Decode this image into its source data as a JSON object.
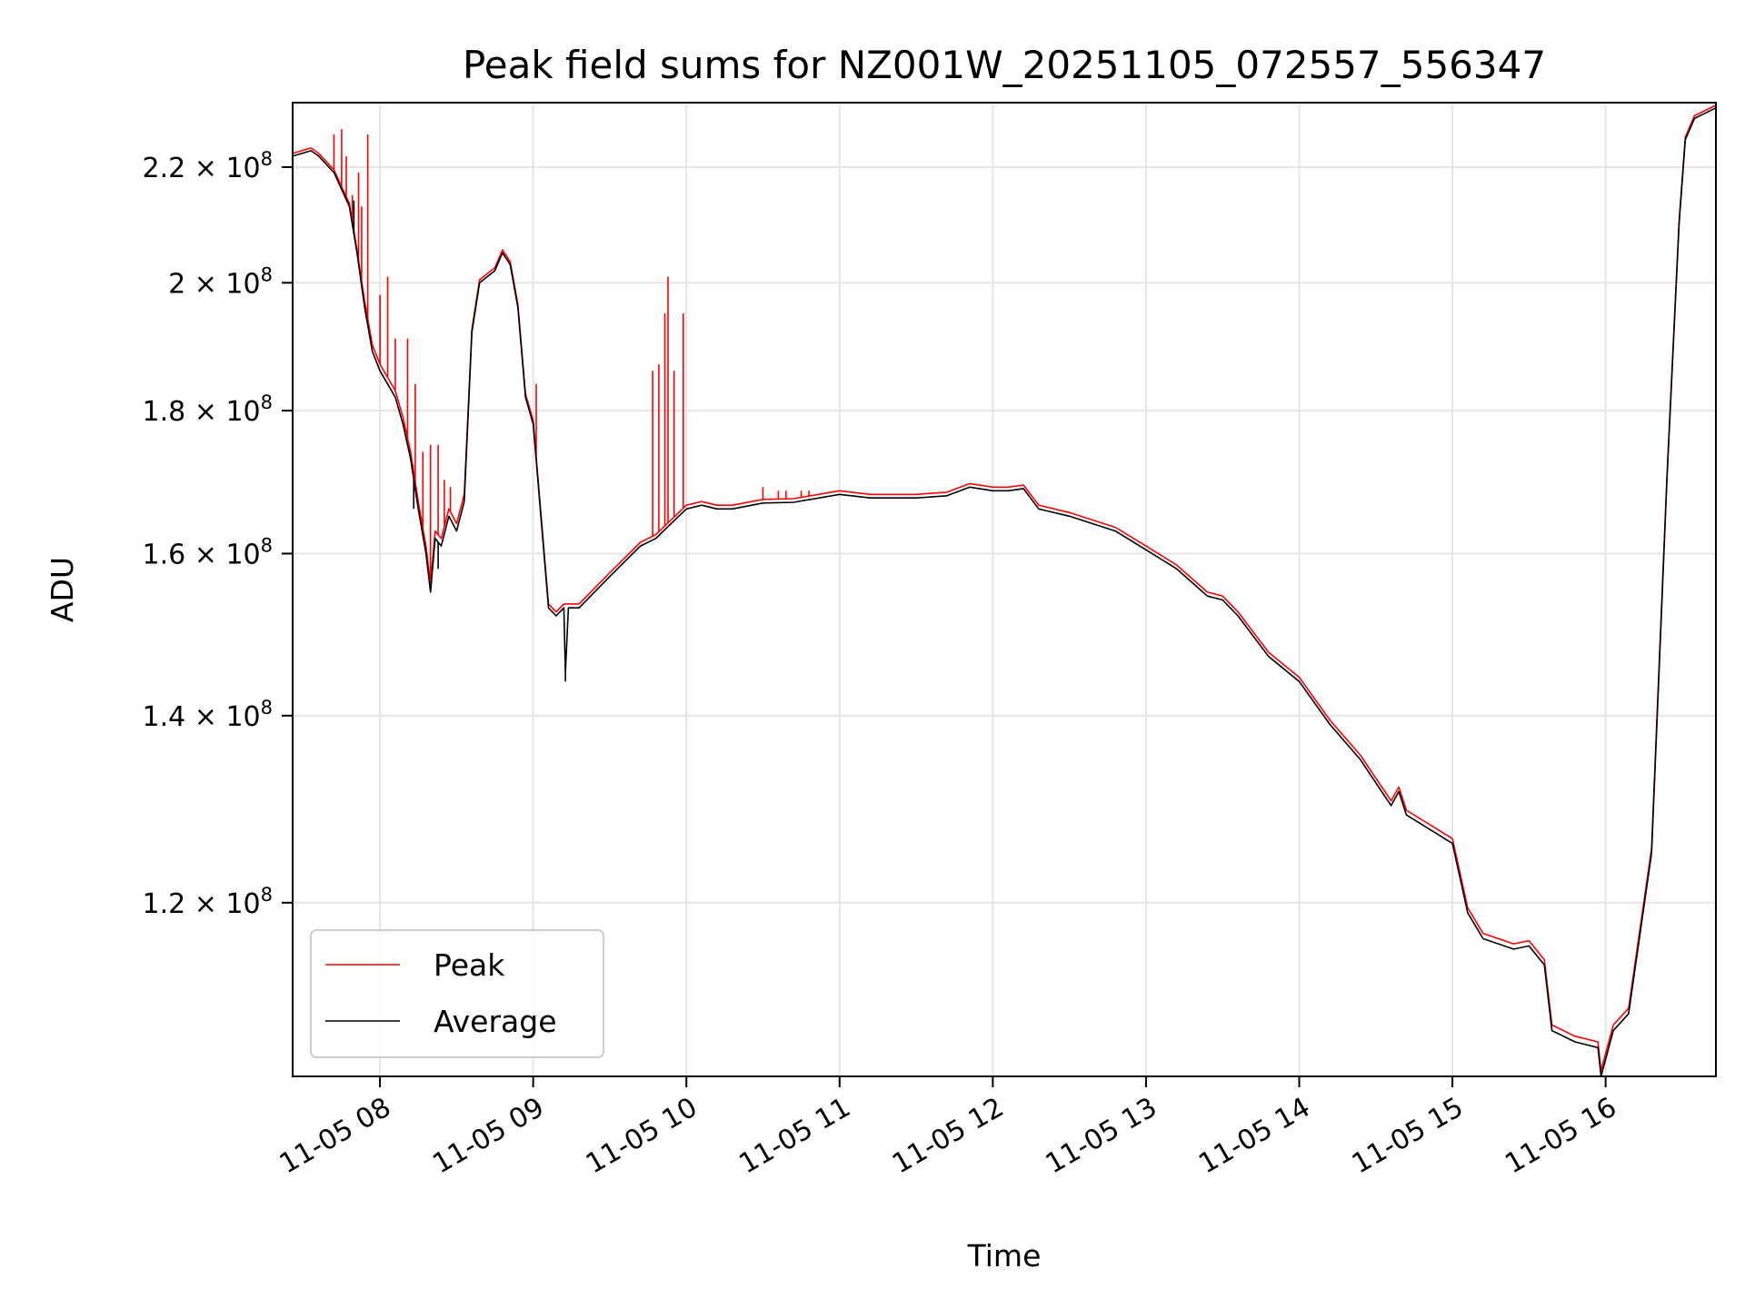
{
  "chart_data": {
    "type": "line",
    "title": "Peak field sums for NZ001W_20251105_072557_556347",
    "xlabel": "Time",
    "ylabel": "ADU",
    "yscale": "log",
    "xlim": [
      7.43,
      16.72
    ],
    "ylim": [
      104000000,
      232000000
    ],
    "x_unit": "hours on 2025-11-05",
    "x_ticks": [
      {
        "value": 8,
        "label": "11-05 08"
      },
      {
        "value": 9,
        "label": "11-05 09"
      },
      {
        "value": 10,
        "label": "11-05 10"
      },
      {
        "value": 11,
        "label": "11-05 11"
      },
      {
        "value": 12,
        "label": "11-05 12"
      },
      {
        "value": 13,
        "label": "11-05 13"
      },
      {
        "value": 14,
        "label": "11-05 14"
      },
      {
        "value": 15,
        "label": "11-05 15"
      },
      {
        "value": 16,
        "label": "11-05 16"
      }
    ],
    "y_ticks": [
      {
        "value": 120000000,
        "mantissa": "1.2"
      },
      {
        "value": 140000000,
        "mantissa": "1.4"
      },
      {
        "value": 160000000,
        "mantissa": "1.6"
      },
      {
        "value": 180000000,
        "mantissa": "1.8"
      },
      {
        "value": 200000000,
        "mantissa": "2"
      },
      {
        "value": 220000000,
        "mantissa": "2.2"
      }
    ],
    "y_tick_multiplier": "× 10",
    "y_tick_exponent": "8",
    "grid": true,
    "legend_position": "lower-left",
    "series": [
      {
        "name": "Average",
        "color": "#000000",
        "points": [
          [
            7.43,
            222000000
          ],
          [
            7.55,
            223000000
          ],
          [
            7.6,
            222000000
          ],
          [
            7.7,
            219000000
          ],
          [
            7.8,
            213000000
          ],
          [
            7.85,
            205000000
          ],
          [
            7.9,
            196000000
          ],
          [
            7.95,
            189000000
          ],
          [
            8.0,
            186000000
          ],
          [
            8.05,
            184000000
          ],
          [
            8.1,
            182000000
          ],
          [
            8.15,
            178000000
          ],
          [
            8.2,
            173000000
          ],
          [
            8.25,
            166000000
          ],
          [
            8.3,
            160000000
          ],
          [
            8.33,
            155000000
          ],
          [
            8.36,
            162000000
          ],
          [
            8.4,
            161000000
          ],
          [
            8.45,
            165000000
          ],
          [
            8.5,
            163000000
          ],
          [
            8.55,
            167000000
          ],
          [
            8.6,
            192000000
          ],
          [
            8.65,
            200000000
          ],
          [
            8.7,
            201000000
          ],
          [
            8.75,
            202000000
          ],
          [
            8.8,
            205000000
          ],
          [
            8.85,
            203000000
          ],
          [
            8.9,
            196000000
          ],
          [
            8.95,
            182000000
          ],
          [
            9.0,
            178000000
          ],
          [
            9.05,
            165000000
          ],
          [
            9.1,
            153000000
          ],
          [
            9.15,
            152000000
          ],
          [
            9.2,
            153000000
          ],
          [
            9.21,
            145000000
          ],
          [
            9.23,
            153000000
          ],
          [
            9.3,
            153000000
          ],
          [
            9.5,
            157000000
          ],
          [
            9.7,
            161000000
          ],
          [
            9.8,
            162000000
          ],
          [
            9.9,
            164000000
          ],
          [
            10.0,
            166000000
          ],
          [
            10.1,
            166500000
          ],
          [
            10.2,
            166000000
          ],
          [
            10.3,
            166000000
          ],
          [
            10.5,
            166800000
          ],
          [
            10.7,
            166900000
          ],
          [
            11.0,
            168000000
          ],
          [
            11.2,
            167500000
          ],
          [
            11.5,
            167500000
          ],
          [
            11.7,
            167800000
          ],
          [
            11.85,
            169000000
          ],
          [
            12.0,
            168500000
          ],
          [
            12.1,
            168500000
          ],
          [
            12.2,
            168800000
          ],
          [
            12.3,
            166000000
          ],
          [
            12.5,
            165000000
          ],
          [
            12.8,
            163000000
          ],
          [
            13.0,
            160500000
          ],
          [
            13.2,
            158000000
          ],
          [
            13.4,
            154500000
          ],
          [
            13.5,
            154000000
          ],
          [
            13.6,
            152000000
          ],
          [
            13.8,
            147000000
          ],
          [
            14.0,
            144000000
          ],
          [
            14.2,
            139000000
          ],
          [
            14.4,
            135000000
          ],
          [
            14.6,
            130000000
          ],
          [
            14.65,
            131500000
          ],
          [
            14.7,
            129000000
          ],
          [
            14.9,
            127000000
          ],
          [
            15.0,
            126000000
          ],
          [
            15.1,
            119000000
          ],
          [
            15.2,
            116500000
          ],
          [
            15.4,
            115500000
          ],
          [
            15.5,
            115800000
          ],
          [
            15.6,
            114000000
          ],
          [
            15.65,
            108000000
          ],
          [
            15.8,
            107000000
          ],
          [
            15.95,
            106500000
          ],
          [
            15.97,
            104000000
          ],
          [
            16.05,
            108000000
          ],
          [
            16.15,
            109500000
          ],
          [
            16.3,
            125000000
          ],
          [
            16.4,
            170000000
          ],
          [
            16.48,
            210000000
          ],
          [
            16.52,
            225000000
          ],
          [
            16.58,
            229000000
          ],
          [
            16.72,
            231000000
          ]
        ],
        "dips": [
          [
            7.83,
            214000000
          ],
          [
            8.22,
            166000000
          ],
          [
            8.38,
            158000000
          ],
          [
            9.21,
            144000000
          ],
          [
            15.97,
            104000000
          ]
        ]
      },
      {
        "name": "Peak",
        "color": "#ff0000",
        "points": [
          [
            7.43,
            222500000
          ],
          [
            7.55,
            223500000
          ],
          [
            7.6,
            222500000
          ],
          [
            7.7,
            219500000
          ],
          [
            7.8,
            213500000
          ],
          [
            7.85,
            205500000
          ],
          [
            7.9,
            197000000
          ],
          [
            7.95,
            190000000
          ],
          [
            8.0,
            187000000
          ],
          [
            8.05,
            185000000
          ],
          [
            8.1,
            183000000
          ],
          [
            8.15,
            179000000
          ],
          [
            8.2,
            174000000
          ],
          [
            8.25,
            167000000
          ],
          [
            8.3,
            161000000
          ],
          [
            8.33,
            156000000
          ],
          [
            8.36,
            163000000
          ],
          [
            8.4,
            162000000
          ],
          [
            8.45,
            166000000
          ],
          [
            8.5,
            164000000
          ],
          [
            8.55,
            168000000
          ],
          [
            8.6,
            192500000
          ],
          [
            8.65,
            200500000
          ],
          [
            8.7,
            201500000
          ],
          [
            8.75,
            202500000
          ],
          [
            8.8,
            205500000
          ],
          [
            8.85,
            203500000
          ],
          [
            8.9,
            196500000
          ],
          [
            8.95,
            182500000
          ],
          [
            9.0,
            178500000
          ],
          [
            9.05,
            165500000
          ],
          [
            9.1,
            153500000
          ],
          [
            9.15,
            152500000
          ],
          [
            9.2,
            153500000
          ],
          [
            9.23,
            153500000
          ],
          [
            9.3,
            153500000
          ],
          [
            9.5,
            157500000
          ],
          [
            9.7,
            161500000
          ],
          [
            9.8,
            162500000
          ],
          [
            9.9,
            164500000
          ],
          [
            10.0,
            166500000
          ],
          [
            10.1,
            167000000
          ],
          [
            10.2,
            166500000
          ],
          [
            10.3,
            166500000
          ],
          [
            10.5,
            167300000
          ],
          [
            10.7,
            167400000
          ],
          [
            11.0,
            168500000
          ],
          [
            11.2,
            168000000
          ],
          [
            11.5,
            168000000
          ],
          [
            11.7,
            168300000
          ],
          [
            11.85,
            169500000
          ],
          [
            12.0,
            169000000
          ],
          [
            12.1,
            169000000
          ],
          [
            12.2,
            169300000
          ],
          [
            12.3,
            166500000
          ],
          [
            12.5,
            165500000
          ],
          [
            12.8,
            163500000
          ],
          [
            13.0,
            161000000
          ],
          [
            13.2,
            158500000
          ],
          [
            13.4,
            155000000
          ],
          [
            13.5,
            154500000
          ],
          [
            13.6,
            152500000
          ],
          [
            13.8,
            147500000
          ],
          [
            14.0,
            144500000
          ],
          [
            14.2,
            139500000
          ],
          [
            14.4,
            135500000
          ],
          [
            14.6,
            130500000
          ],
          [
            14.65,
            132000000
          ],
          [
            14.7,
            129500000
          ],
          [
            14.9,
            127500000
          ],
          [
            15.0,
            126500000
          ],
          [
            15.1,
            119500000
          ],
          [
            15.2,
            117000000
          ],
          [
            15.4,
            116000000
          ],
          [
            15.5,
            116300000
          ],
          [
            15.6,
            114500000
          ],
          [
            15.65,
            108500000
          ],
          [
            15.8,
            107500000
          ],
          [
            15.95,
            107000000
          ],
          [
            15.97,
            104500000
          ],
          [
            16.05,
            108500000
          ],
          [
            16.15,
            110000000
          ],
          [
            16.3,
            125500000
          ],
          [
            16.4,
            170500000
          ],
          [
            16.48,
            210500000
          ],
          [
            16.52,
            225500000
          ],
          [
            16.58,
            229500000
          ],
          [
            16.72,
            231500000
          ]
        ],
        "spikes": [
          [
            7.7,
            226000000
          ],
          [
            7.75,
            227000000
          ],
          [
            7.78,
            222000000
          ],
          [
            7.82,
            215000000
          ],
          [
            7.86,
            219000000
          ],
          [
            7.88,
            213000000
          ],
          [
            7.92,
            226000000
          ],
          [
            8.0,
            198000000
          ],
          [
            8.05,
            201000000
          ],
          [
            8.1,
            191000000
          ],
          [
            8.18,
            191000000
          ],
          [
            8.23,
            184000000
          ],
          [
            8.28,
            174000000
          ],
          [
            8.33,
            175000000
          ],
          [
            8.38,
            175000000
          ],
          [
            8.42,
            170000000
          ],
          [
            8.46,
            169000000
          ],
          [
            9.02,
            184000000
          ],
          [
            9.78,
            186000000
          ],
          [
            9.82,
            187000000
          ],
          [
            9.86,
            195000000
          ],
          [
            9.88,
            201000000
          ],
          [
            9.92,
            186000000
          ],
          [
            9.98,
            195000000
          ],
          [
            10.5,
            169000000
          ],
          [
            10.6,
            168500000
          ],
          [
            10.65,
            168500000
          ],
          [
            10.75,
            168500000
          ],
          [
            10.8,
            168500000
          ]
        ]
      }
    ]
  }
}
